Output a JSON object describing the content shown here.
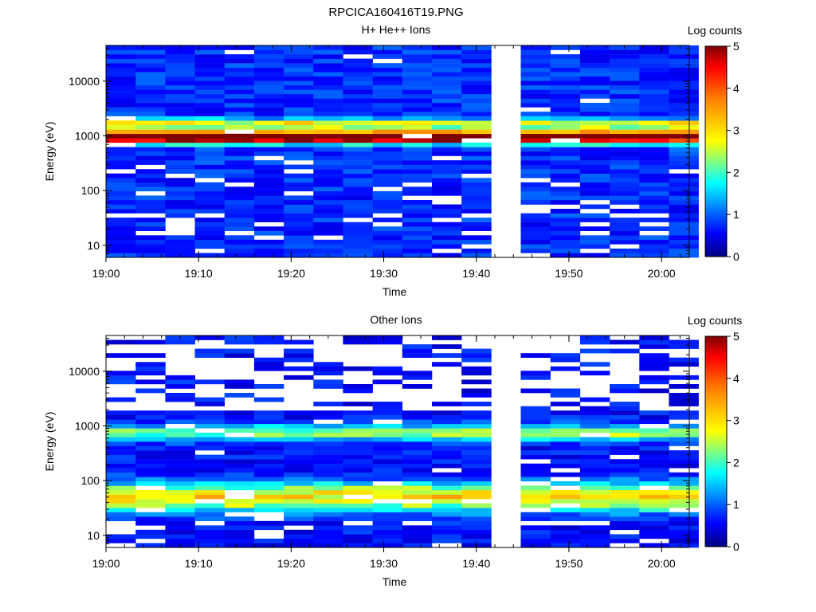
{
  "figure": {
    "title": "RPCICA160416T19.PNG"
  },
  "chart_data": [
    {
      "type": "heatmap",
      "title": "H+ He++ Ions",
      "xlabel": "Time",
      "ylabel": "Energy (eV)",
      "x_ticks": [
        "19:00",
        "19:10",
        "19:20",
        "19:30",
        "19:40",
        "19:50",
        "20:00"
      ],
      "y_ticks": [
        "10",
        "100",
        "1000",
        "10000"
      ],
      "y_scale": "log",
      "xlim": [
        "19:00",
        "20:03"
      ],
      "ylim": [
        6,
        45000
      ],
      "colorbar": {
        "label": "Log counts",
        "ticks": [
          "0",
          "1",
          "2",
          "3",
          "4",
          "5"
        ],
        "range": [
          0,
          5
        ]
      },
      "time_columns_min": [
        0.0,
        3.2,
        6.4,
        9.6,
        12.8,
        16.0,
        19.2,
        22.4,
        25.6,
        28.8,
        32.0,
        35.2,
        38.4,
        41.6,
        44.8,
        48.0,
        51.2,
        54.4,
        57.6,
        60.8
      ],
      "data_gap_min": [
        39.2,
        42.5
      ],
      "energy_bands": [
        {
          "energy_eV": 900,
          "level": 3.3,
          "width_dex": 0.07
        },
        {
          "energy_eV": 1050,
          "level": 2.6,
          "width_dex": 0.08
        },
        {
          "energy_eV": 1700,
          "level": 2.0,
          "width_dex": 0.06
        }
      ],
      "background_level": 0.45
    },
    {
      "type": "heatmap",
      "title": "Other Ions",
      "xlabel": "Time",
      "ylabel": "Energy (eV)",
      "x_ticks": [
        "19:00",
        "19:10",
        "19:20",
        "19:30",
        "19:40",
        "19:50",
        "20:00"
      ],
      "y_ticks": [
        "10",
        "100",
        "1000",
        "10000"
      ],
      "y_scale": "log",
      "xlim": [
        "19:00",
        "20:03"
      ],
      "ylim": [
        6,
        45000
      ],
      "colorbar": {
        "label": "Log counts",
        "ticks": [
          "0",
          "1",
          "2",
          "3",
          "4",
          "5"
        ],
        "range": [
          0,
          5
        ]
      },
      "time_columns_min": [
        0.0,
        3.2,
        6.4,
        9.6,
        12.8,
        16.0,
        19.2,
        22.4,
        25.6,
        28.8,
        32.0,
        35.2,
        38.4,
        41.6,
        44.8,
        48.0,
        51.2,
        54.4,
        57.6,
        60.8
      ],
      "data_gap_min": [
        39.2,
        42.5
      ],
      "energy_bands": [
        {
          "energy_eV": 750,
          "level": 1.7,
          "width_dex": 0.1
        },
        {
          "energy_eV": 50,
          "level": 2.4,
          "width_dex": 0.18
        }
      ],
      "background_level": 0.3
    }
  ]
}
